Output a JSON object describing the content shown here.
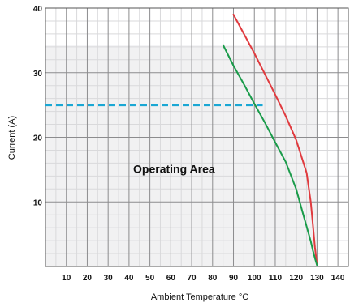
{
  "chart_data": {
    "type": "line",
    "xlabel": "Ambient Temperature °C",
    "ylabel": "Current (A)",
    "xlim": [
      0,
      145
    ],
    "ylim": [
      0,
      40
    ],
    "x_ticks": [
      10,
      20,
      30,
      40,
      50,
      60,
      70,
      80,
      90,
      100,
      110,
      120,
      130,
      140
    ],
    "y_ticks": [
      10,
      20,
      30,
      40
    ],
    "grid": true,
    "legend": "none",
    "operating_area": {
      "x": [
        0,
        130
      ],
      "y": [
        0,
        34.2
      ]
    },
    "annotations": [
      {
        "text": "Operating Area",
        "x": 42,
        "y": 14.5
      }
    ],
    "reference_line": {
      "y": 25,
      "x_start": 0,
      "x_end": 104,
      "color": "#1aa7d4",
      "style": "dashed"
    },
    "series": [
      {
        "color": "#e03a3e",
        "x": [
          90,
          95,
          100,
          105,
          110,
          115,
          120,
          125,
          127,
          128,
          129,
          130
        ],
        "y": [
          39.0,
          36.0,
          33.0,
          29.8,
          26.6,
          23.3,
          19.6,
          14.5,
          10.0,
          6.5,
          3.0,
          0.2
        ]
      },
      {
        "color": "#1a9b4a",
        "x": [
          85,
          90,
          95,
          100,
          105,
          110,
          115,
          120,
          123,
          125,
          127,
          128,
          129,
          130
        ],
        "y": [
          34.3,
          31.1,
          28.2,
          25.2,
          22.3,
          19.2,
          16.2,
          12.0,
          8.5,
          6.2,
          3.9,
          2.5,
          1.3,
          0.2
        ]
      }
    ]
  }
}
